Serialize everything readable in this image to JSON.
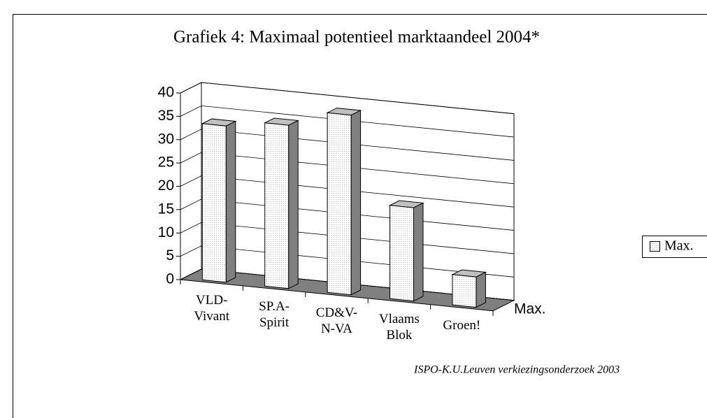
{
  "chart_data": {
    "type": "bar3d",
    "title": "Grafiek 4: Maximaal potentieel marktaandeel 2004*",
    "categories": [
      "VLD-\nVivant",
      "SP.A-\nSpirit",
      "CD&V-\nN-VA",
      "Vlaams\nBlok",
      "Groen!"
    ],
    "series": [
      {
        "name": "Max.",
        "color": "#ffffff",
        "values": [
          33.5,
          35,
          38.5,
          20,
          6.5
        ]
      }
    ],
    "depth_label": "Max.",
    "ylim": [
      0,
      40
    ],
    "yticks": [
      0,
      5,
      10,
      15,
      20,
      25,
      30,
      35,
      40
    ],
    "grid": true,
    "legend": "right",
    "source": "ISPO-K.U.Leuven verkiezingsonderzoek 2003"
  }
}
